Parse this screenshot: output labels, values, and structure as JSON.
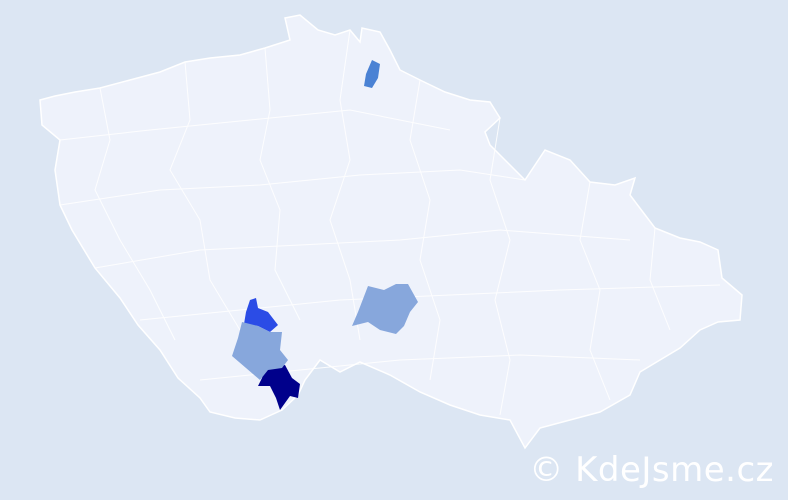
{
  "map": {
    "colors": {
      "background": "#dce6f3",
      "region_default": "#eef2fb",
      "region_border": "#ffffff",
      "highest": "#00008b",
      "high": "#2b4ce6",
      "medium": "#4a82d4",
      "low": "#87a7dc"
    },
    "highlighted_regions": [
      {
        "level": "highest"
      },
      {
        "level": "high"
      },
      {
        "level": "medium"
      },
      {
        "level": "low"
      },
      {
        "level": "low"
      }
    ]
  },
  "watermark": "© KdeJsme.cz"
}
